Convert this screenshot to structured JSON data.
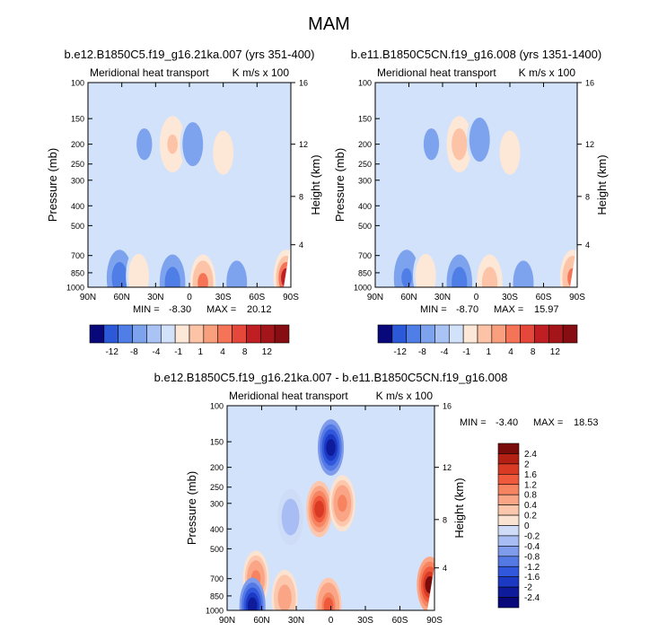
{
  "page": {
    "title": "MAM"
  },
  "chart_data": [
    {
      "type": "heatmap",
      "title": "b.e12.B1850C5.f19_g16.21ka.007 (yrs 351-400)",
      "left_title": "Meridional heat transport",
      "units": "K m/s x 100",
      "ylabel": "Pressure (mb)",
      "ylabel_right": "Height (km)",
      "x_ticks": [
        "90N",
        "60N",
        "30N",
        "0",
        "30S",
        "60S",
        "90S"
      ],
      "y_ticks": [
        "100",
        "150",
        "200",
        "250",
        "300",
        "400",
        "500",
        "700",
        "850",
        "1000"
      ],
      "y_right_ticks": [
        "16",
        "12",
        "8",
        "4"
      ],
      "min_label": "MIN = ",
      "min_value": "-8.30",
      "max_label": "MAX = ",
      "max_value": "20.12",
      "colorbar_labels": [
        "-12",
        "-8",
        "-4",
        "-1",
        "1",
        "4",
        "8",
        "12"
      ],
      "features": [
        {
          "lat": 15,
          "p": 200,
          "value": 5
        },
        {
          "lat": -3,
          "p": 200,
          "value": -4
        },
        {
          "lat": -30,
          "p": 220,
          "value": 2
        },
        {
          "lat": 40,
          "p": 200,
          "value": -1.5
        },
        {
          "lat": 62,
          "p": 900,
          "value": -6
        },
        {
          "lat": 45,
          "p": 880,
          "value": 2
        },
        {
          "lat": 15,
          "p": 950,
          "value": -6
        },
        {
          "lat": -12,
          "p": 950,
          "value": 8
        },
        {
          "lat": -42,
          "p": 950,
          "value": -3
        },
        {
          "lat": -86,
          "p": 900,
          "value": 14
        }
      ]
    },
    {
      "type": "heatmap",
      "title": "b.e11.B1850C5CN.f19_g16.008 (yrs 1351-1400)",
      "left_title": "Meridional heat transport",
      "units": "K m/s x 100",
      "ylabel": "Pressure (mb)",
      "ylabel_right": "Height (km)",
      "x_ticks": [
        "90N",
        "60N",
        "30N",
        "0",
        "30S",
        "60S",
        "90S"
      ],
      "y_ticks": [
        "100",
        "150",
        "200",
        "250",
        "300",
        "400",
        "500",
        "700",
        "850",
        "1000"
      ],
      "y_right_ticks": [
        "16",
        "12",
        "8",
        "4"
      ],
      "min_label": "MIN = ",
      "min_value": "-8.70",
      "max_label": "MAX = ",
      "max_value": "15.97",
      "colorbar_labels": [
        "-12",
        "-8",
        "-4",
        "-1",
        "1",
        "4",
        "8",
        "12"
      ],
      "features": [
        {
          "lat": 15,
          "p": 200,
          "value": 6
        },
        {
          "lat": -3,
          "p": 190,
          "value": -4
        },
        {
          "lat": -30,
          "p": 220,
          "value": 2
        },
        {
          "lat": 40,
          "p": 200,
          "value": -1.5
        },
        {
          "lat": 62,
          "p": 900,
          "value": -5
        },
        {
          "lat": 45,
          "p": 880,
          "value": 2
        },
        {
          "lat": 15,
          "p": 950,
          "value": -7
        },
        {
          "lat": -12,
          "p": 950,
          "value": 6
        },
        {
          "lat": -42,
          "p": 950,
          "value": -3
        },
        {
          "lat": -86,
          "p": 900,
          "value": 10
        }
      ]
    },
    {
      "type": "heatmap",
      "title": "b.e12.B1850C5.f19_g16.21ka.007 - b.e11.B1850C5CN.f19_g16.008",
      "left_title": "Meridional heat transport",
      "units": "K m/s x 100",
      "ylabel": "Pressure (mb)",
      "ylabel_right": "Height (km)",
      "x_ticks": [
        "90N",
        "60N",
        "30N",
        "0",
        "30S",
        "60S",
        "90S"
      ],
      "y_ticks": [
        "100",
        "150",
        "200",
        "250",
        "300",
        "400",
        "500",
        "700",
        "850",
        "1000"
      ],
      "y_right_ticks": [
        "16",
        "12",
        "8",
        "4"
      ],
      "min_label": "MIN = ",
      "min_value": "-3.40",
      "max_label": "MAX = ",
      "max_value": "18.53",
      "colorbar_labels": [
        "2.4",
        "2",
        "1.6",
        "1.2",
        "0.8",
        "0.4",
        "0.2",
        "0",
        "-0.2",
        "-0.4",
        "-0.8",
        "-1.2",
        "-1.6",
        "-2",
        "-2.4"
      ],
      "features": [
        {
          "lat": 0,
          "p": 160,
          "value": -2.4
        },
        {
          "lat": 10,
          "p": 320,
          "value": 1.6
        },
        {
          "lat": -10,
          "p": 300,
          "value": 0.8
        },
        {
          "lat": 35,
          "p": 350,
          "value": -0.4
        },
        {
          "lat": 65,
          "p": 700,
          "value": 0.8
        },
        {
          "lat": 68,
          "p": 950,
          "value": -2.4
        },
        {
          "lat": 40,
          "p": 870,
          "value": 0.6
        },
        {
          "lat": 2,
          "p": 950,
          "value": 1.2
        },
        {
          "lat": -86,
          "p": 750,
          "value": 2.4
        }
      ]
    }
  ]
}
